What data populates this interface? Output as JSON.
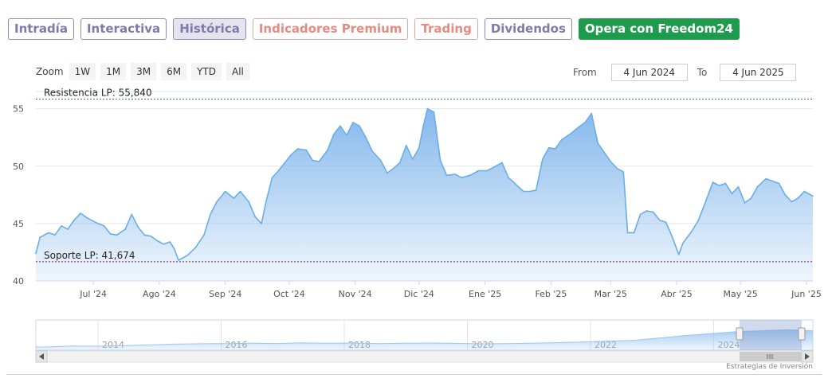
{
  "tabs": [
    {
      "label": "Intradía",
      "style": "normal"
    },
    {
      "label": "Interactiva",
      "style": "normal"
    },
    {
      "label": "Histórica",
      "style": "active"
    },
    {
      "label": "Indicadores Premium",
      "style": "premium"
    },
    {
      "label": "Trading",
      "style": "premium"
    },
    {
      "label": "Dividendos",
      "style": "normal"
    },
    {
      "label": "Opera con Freedom24",
      "style": "cta"
    }
  ],
  "zoom": {
    "label": "Zoom",
    "buttons": [
      "1W",
      "1M",
      "3M",
      "6M",
      "YTD",
      "All"
    ]
  },
  "range": {
    "from_label": "From",
    "from_value": "4 Jun 2024",
    "to_label": "To",
    "to_value": "4 Jun 2025"
  },
  "credits": "Estrategias de Inversión",
  "colors": {
    "line": "#6aaee6",
    "fill_top": "#7fb4ec",
    "accent": "#1e9b4d"
  },
  "chart_data": {
    "type": "area",
    "x_start": "2024-06-04",
    "x_end": "2025-06-04",
    "ylim": [
      40,
      56.5
    ],
    "y_ticks": [
      40,
      45,
      50,
      55
    ],
    "x_ticks": [
      {
        "date": "2024-07-01",
        "label": "Jul '24"
      },
      {
        "date": "2024-08-01",
        "label": "Ago '24"
      },
      {
        "date": "2024-09-01",
        "label": "Sep '24"
      },
      {
        "date": "2024-10-01",
        "label": "Oct '24"
      },
      {
        "date": "2024-11-01",
        "label": "Nov '24"
      },
      {
        "date": "2024-12-01",
        "label": "Dic '24"
      },
      {
        "date": "2025-01-01",
        "label": "Ene '25"
      },
      {
        "date": "2025-02-01",
        "label": "Feb '25"
      },
      {
        "date": "2025-03-01",
        "label": "Mar '25"
      },
      {
        "date": "2025-04-01",
        "label": "Abr '25"
      },
      {
        "date": "2025-05-01",
        "label": "May '25"
      },
      {
        "date": "2025-06-01",
        "label": "Jun '25"
      }
    ],
    "reference_lines": [
      {
        "label": "Resistencia LP: 55,840",
        "value": 55.84
      },
      {
        "label": "Soporte LP: 41,674",
        "value": 41.674
      }
    ],
    "series": [
      {
        "points": [
          [
            "2024-06-04",
            42.4
          ],
          [
            "2024-06-06",
            43.8
          ],
          [
            "2024-06-10",
            44.2
          ],
          [
            "2024-06-13",
            44.0
          ],
          [
            "2024-06-16",
            44.8
          ],
          [
            "2024-06-19",
            44.5
          ],
          [
            "2024-06-22",
            45.3
          ],
          [
            "2024-06-25",
            45.9
          ],
          [
            "2024-06-28",
            45.5
          ],
          [
            "2024-07-02",
            45.1
          ],
          [
            "2024-07-06",
            44.8
          ],
          [
            "2024-07-09",
            44.1
          ],
          [
            "2024-07-12",
            44.0
          ],
          [
            "2024-07-16",
            44.5
          ],
          [
            "2024-07-19",
            45.8
          ],
          [
            "2024-07-22",
            44.7
          ],
          [
            "2024-07-25",
            44.0
          ],
          [
            "2024-07-28",
            43.9
          ],
          [
            "2024-07-31",
            43.5
          ],
          [
            "2024-08-03",
            43.2
          ],
          [
            "2024-08-06",
            43.4
          ],
          [
            "2024-08-08",
            42.8
          ],
          [
            "2024-08-10",
            41.8
          ],
          [
            "2024-08-14",
            42.2
          ],
          [
            "2024-08-18",
            42.9
          ],
          [
            "2024-08-22",
            44.0
          ],
          [
            "2024-08-25",
            45.8
          ],
          [
            "2024-08-28",
            46.9
          ],
          [
            "2024-09-01",
            47.8
          ],
          [
            "2024-09-05",
            47.2
          ],
          [
            "2024-09-08",
            47.8
          ],
          [
            "2024-09-12",
            46.9
          ],
          [
            "2024-09-15",
            45.6
          ],
          [
            "2024-09-18",
            45.0
          ],
          [
            "2024-09-20",
            46.8
          ],
          [
            "2024-09-23",
            49.0
          ],
          [
            "2024-09-26",
            49.6
          ],
          [
            "2024-09-29",
            50.3
          ],
          [
            "2024-10-02",
            51.0
          ],
          [
            "2024-10-05",
            51.5
          ],
          [
            "2024-10-09",
            51.4
          ],
          [
            "2024-10-12",
            50.5
          ],
          [
            "2024-10-15",
            50.4
          ],
          [
            "2024-10-19",
            51.4
          ],
          [
            "2024-10-22",
            52.8
          ],
          [
            "2024-10-25",
            53.5
          ],
          [
            "2024-10-28",
            52.7
          ],
          [
            "2024-10-31",
            53.8
          ],
          [
            "2024-11-03",
            53.5
          ],
          [
            "2024-11-06",
            52.5
          ],
          [
            "2024-11-09",
            51.3
          ],
          [
            "2024-11-13",
            50.5
          ],
          [
            "2024-11-16",
            49.4
          ],
          [
            "2024-11-19",
            49.8
          ],
          [
            "2024-11-22",
            50.3
          ],
          [
            "2024-11-25",
            51.8
          ],
          [
            "2024-11-28",
            50.6
          ],
          [
            "2024-12-01",
            51.6
          ],
          [
            "2024-12-03",
            53.5
          ],
          [
            "2024-12-05",
            55.0
          ],
          [
            "2024-12-08",
            54.7
          ],
          [
            "2024-12-11",
            50.5
          ],
          [
            "2024-12-14",
            49.2
          ],
          [
            "2024-12-18",
            49.3
          ],
          [
            "2024-12-21",
            49.0
          ],
          [
            "2024-12-25",
            49.2
          ],
          [
            "2024-12-29",
            49.6
          ],
          [
            "2025-01-02",
            49.6
          ],
          [
            "2025-01-06",
            50.0
          ],
          [
            "2025-01-09",
            50.3
          ],
          [
            "2025-01-12",
            49.0
          ],
          [
            "2025-01-15",
            48.5
          ],
          [
            "2025-01-19",
            47.8
          ],
          [
            "2025-01-22",
            47.8
          ],
          [
            "2025-01-25",
            47.9
          ],
          [
            "2025-01-28",
            50.6
          ],
          [
            "2025-01-31",
            51.6
          ],
          [
            "2025-02-03",
            51.5
          ],
          [
            "2025-02-06",
            52.3
          ],
          [
            "2025-02-10",
            52.8
          ],
          [
            "2025-02-14",
            53.4
          ],
          [
            "2025-02-17",
            53.8
          ],
          [
            "2025-02-20",
            54.6
          ],
          [
            "2025-02-23",
            52.0
          ],
          [
            "2025-02-26",
            51.2
          ],
          [
            "2025-03-01",
            50.4
          ],
          [
            "2025-03-04",
            49.8
          ],
          [
            "2025-03-07",
            49.5
          ],
          [
            "2025-03-09",
            44.2
          ],
          [
            "2025-03-12",
            44.2
          ],
          [
            "2025-03-15",
            45.8
          ],
          [
            "2025-03-18",
            46.1
          ],
          [
            "2025-03-21",
            46.0
          ],
          [
            "2025-03-24",
            45.3
          ],
          [
            "2025-03-27",
            45.1
          ],
          [
            "2025-03-30",
            43.8
          ],
          [
            "2025-04-02",
            42.3
          ],
          [
            "2025-04-04",
            43.3
          ],
          [
            "2025-04-08",
            44.3
          ],
          [
            "2025-04-11",
            45.2
          ],
          [
            "2025-04-14",
            46.6
          ],
          [
            "2025-04-18",
            48.6
          ],
          [
            "2025-04-21",
            48.3
          ],
          [
            "2025-04-24",
            48.5
          ],
          [
            "2025-04-27",
            47.6
          ],
          [
            "2025-04-30",
            48.2
          ],
          [
            "2025-05-03",
            46.8
          ],
          [
            "2025-05-06",
            47.2
          ],
          [
            "2025-05-09",
            48.2
          ],
          [
            "2025-05-13",
            48.9
          ],
          [
            "2025-05-16",
            48.7
          ],
          [
            "2025-05-19",
            48.5
          ],
          [
            "2025-05-22",
            47.5
          ],
          [
            "2025-05-25",
            46.9
          ],
          [
            "2025-05-28",
            47.2
          ],
          [
            "2025-05-31",
            47.8
          ],
          [
            "2025-06-04",
            47.4
          ]
        ]
      }
    ],
    "navigator": {
      "x_labels": [
        "2014",
        "2016",
        "2018",
        "2020",
        "2022",
        "2024"
      ]
    }
  }
}
